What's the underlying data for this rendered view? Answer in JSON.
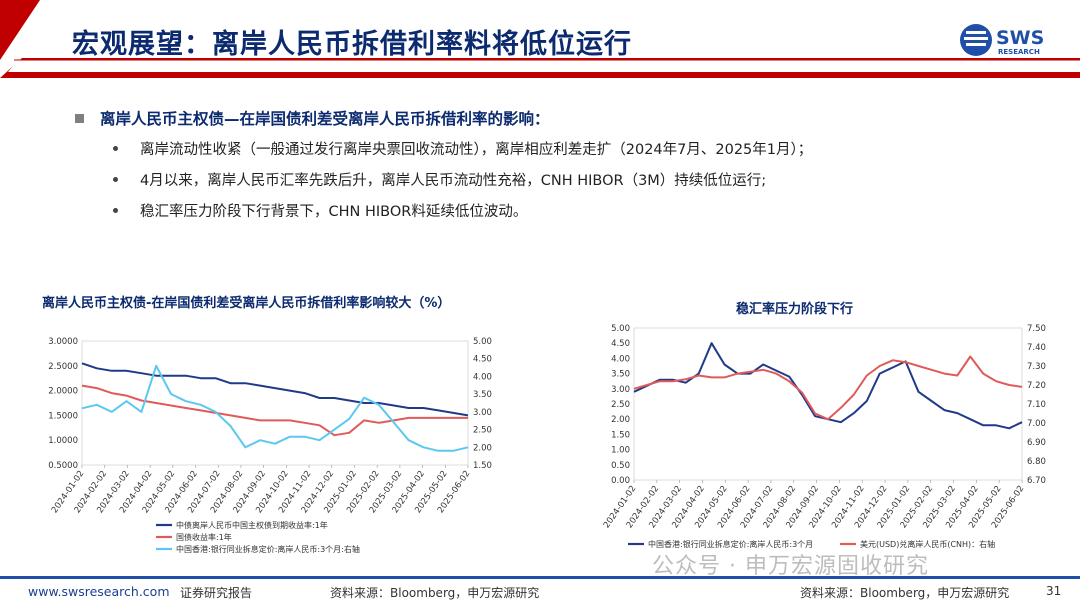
{
  "header": {
    "title": "宏观展望：离岸人民币拆借利率料将低位运行",
    "logo_text": "SWS",
    "logo_subtext": "RESEARCH",
    "accent_color": "#c00000",
    "title_color": "#0b2a6f"
  },
  "section": {
    "heading": "离岸人民币主权债—在岸国债利差受离岸人民币拆借利率的影响：",
    "bullets": [
      "离岸流动性收紧（一般通过发行离岸央票回收流动性），离岸相应利差走扩（2024年7月、2025年1月）；",
      "4月以来，离岸人民币汇率先跌后升，离岸人民币流动性充裕，CNH HIBOR（3M）持续低位运行;",
      "稳汇率压力阶段下行背景下，CHN HIBOR料延续低位波动。"
    ]
  },
  "chart_data": [
    {
      "type": "line",
      "title": "离岸人民币主权债-在岸国债利差受离岸人民币拆借利率影响较大（%）",
      "x_tick_labels": [
        "2024-01-02",
        "2024-02-02",
        "2024-03-02",
        "2024-04-02",
        "2024-05-02",
        "2024-06-02",
        "2024-07-02",
        "2024-08-02",
        "2024-09-02",
        "2024-10-02",
        "2024-11-02",
        "2024-12-02",
        "2025-01-02",
        "2025-02-02",
        "2025-03-02",
        "2025-04-02",
        "2025-05-02",
        "2025-06-02"
      ],
      "y_left_ticks": [
        "3.0000",
        "2.5000",
        "2.0000",
        "1.5000",
        "1.0000",
        "0.5000"
      ],
      "y_left_range": [
        0.5,
        3.0
      ],
      "y_right_ticks": [
        "5.00",
        "4.50",
        "4.00",
        "3.50",
        "3.00",
        "2.50",
        "2.00",
        "1.50"
      ],
      "y_right_range": [
        1.5,
        5.0
      ],
      "series": [
        {
          "name": "中债离岸人民币中国主权债到期收益率:1年",
          "color": "#1f3a8a",
          "axis": "left",
          "values": [
            2.55,
            2.45,
            2.4,
            2.4,
            2.35,
            2.3,
            2.3,
            2.3,
            2.25,
            2.25,
            2.15,
            2.15,
            2.1,
            2.05,
            2.0,
            1.95,
            1.85,
            1.85,
            1.8,
            1.75,
            1.75,
            1.7,
            1.65,
            1.65,
            1.6,
            1.55,
            1.5
          ]
        },
        {
          "name": "国债收益率:1年",
          "color": "#e05a5a",
          "axis": "left",
          "values": [
            2.1,
            2.05,
            1.95,
            1.9,
            1.8,
            1.75,
            1.7,
            1.65,
            1.6,
            1.55,
            1.5,
            1.45,
            1.4,
            1.4,
            1.4,
            1.35,
            1.3,
            1.1,
            1.15,
            1.4,
            1.35,
            1.4,
            1.45,
            1.45,
            1.45,
            1.45,
            1.45
          ]
        },
        {
          "name": "中国香港:银行同业拆息定价:离岸人民币:3个月:右轴",
          "color": "#5bc8f0",
          "axis": "right",
          "values": [
            3.1,
            3.2,
            3.0,
            3.3,
            3.0,
            4.3,
            3.5,
            3.3,
            3.2,
            3.0,
            2.6,
            2.0,
            2.2,
            2.1,
            2.3,
            2.3,
            2.2,
            2.5,
            2.8,
            3.4,
            3.2,
            2.7,
            2.2,
            2.0,
            1.9,
            1.9,
            2.0
          ]
        }
      ],
      "legend": [
        "中债离岸人民币中国主权债到期收益率:1年",
        "国债收益率:1年",
        "中国香港:银行同业拆息定价:离岸人民币:3个月:右轴"
      ],
      "legend_placement": "bottom-left"
    },
    {
      "type": "line",
      "title": "稳汇率压力阶段下行",
      "x_tick_labels": [
        "2024-01-02",
        "2024-02-02",
        "2024-03-02",
        "2024-04-02",
        "2024-05-02",
        "2024-06-02",
        "2024-07-02",
        "2024-08-02",
        "2024-09-02",
        "2024-10-02",
        "2024-11-02",
        "2024-12-02",
        "2025-01-02",
        "2025-02-02",
        "2025-03-02",
        "2025-04-02",
        "2025-05-02",
        "2025-06-02"
      ],
      "y_left_ticks": [
        "5.00",
        "4.50",
        "4.00",
        "3.50",
        "3.00",
        "2.50",
        "2.00",
        "1.50",
        "1.00",
        "0.50",
        "0.00"
      ],
      "y_left_range": [
        0,
        5
      ],
      "y_right_ticks": [
        "7.50",
        "7.40",
        "7.30",
        "7.20",
        "7.10",
        "7.00",
        "6.90",
        "6.80",
        "6.70"
      ],
      "y_right_range": [
        6.7,
        7.5
      ],
      "series": [
        {
          "name": "中国香港:银行同业拆息定价:离岸人民币:3个月",
          "color": "#1f3a8a",
          "axis": "left",
          "values": [
            2.9,
            3.1,
            3.3,
            3.3,
            3.2,
            3.5,
            4.5,
            3.8,
            3.5,
            3.5,
            3.8,
            3.6,
            3.4,
            2.8,
            2.1,
            2.0,
            1.9,
            2.2,
            2.6,
            3.5,
            3.7,
            3.9,
            2.9,
            2.6,
            2.3,
            2.2,
            2.0,
            1.8,
            1.8,
            1.7,
            1.9
          ]
        },
        {
          "name": "美元(USD)兑离岸人民币(CNH)：右轴",
          "color": "#e05a5a",
          "axis": "right",
          "values": [
            7.18,
            7.2,
            7.22,
            7.22,
            7.23,
            7.25,
            7.24,
            7.24,
            7.26,
            7.27,
            7.28,
            7.26,
            7.22,
            7.16,
            7.05,
            7.02,
            7.08,
            7.15,
            7.25,
            7.3,
            7.33,
            7.32,
            7.3,
            7.28,
            7.26,
            7.25,
            7.35,
            7.26,
            7.22,
            7.2,
            7.19
          ]
        }
      ],
      "legend": [
        "中国香港:银行同业拆息定价:离岸人民币:3个月",
        "美元(USD)兑离岸人民币(CNH)：右轴"
      ],
      "legend_placement": "bottom"
    }
  ],
  "footer": {
    "url": "www.swsresearch.com",
    "report_type": "证券研究报告",
    "source_left": "资料来源：Bloomberg，申万宏源研究",
    "source_right": "资料来源：Bloomberg，申万宏源研究",
    "page_number": "31",
    "watermark": "公众号 · 申万宏源固收研究"
  }
}
